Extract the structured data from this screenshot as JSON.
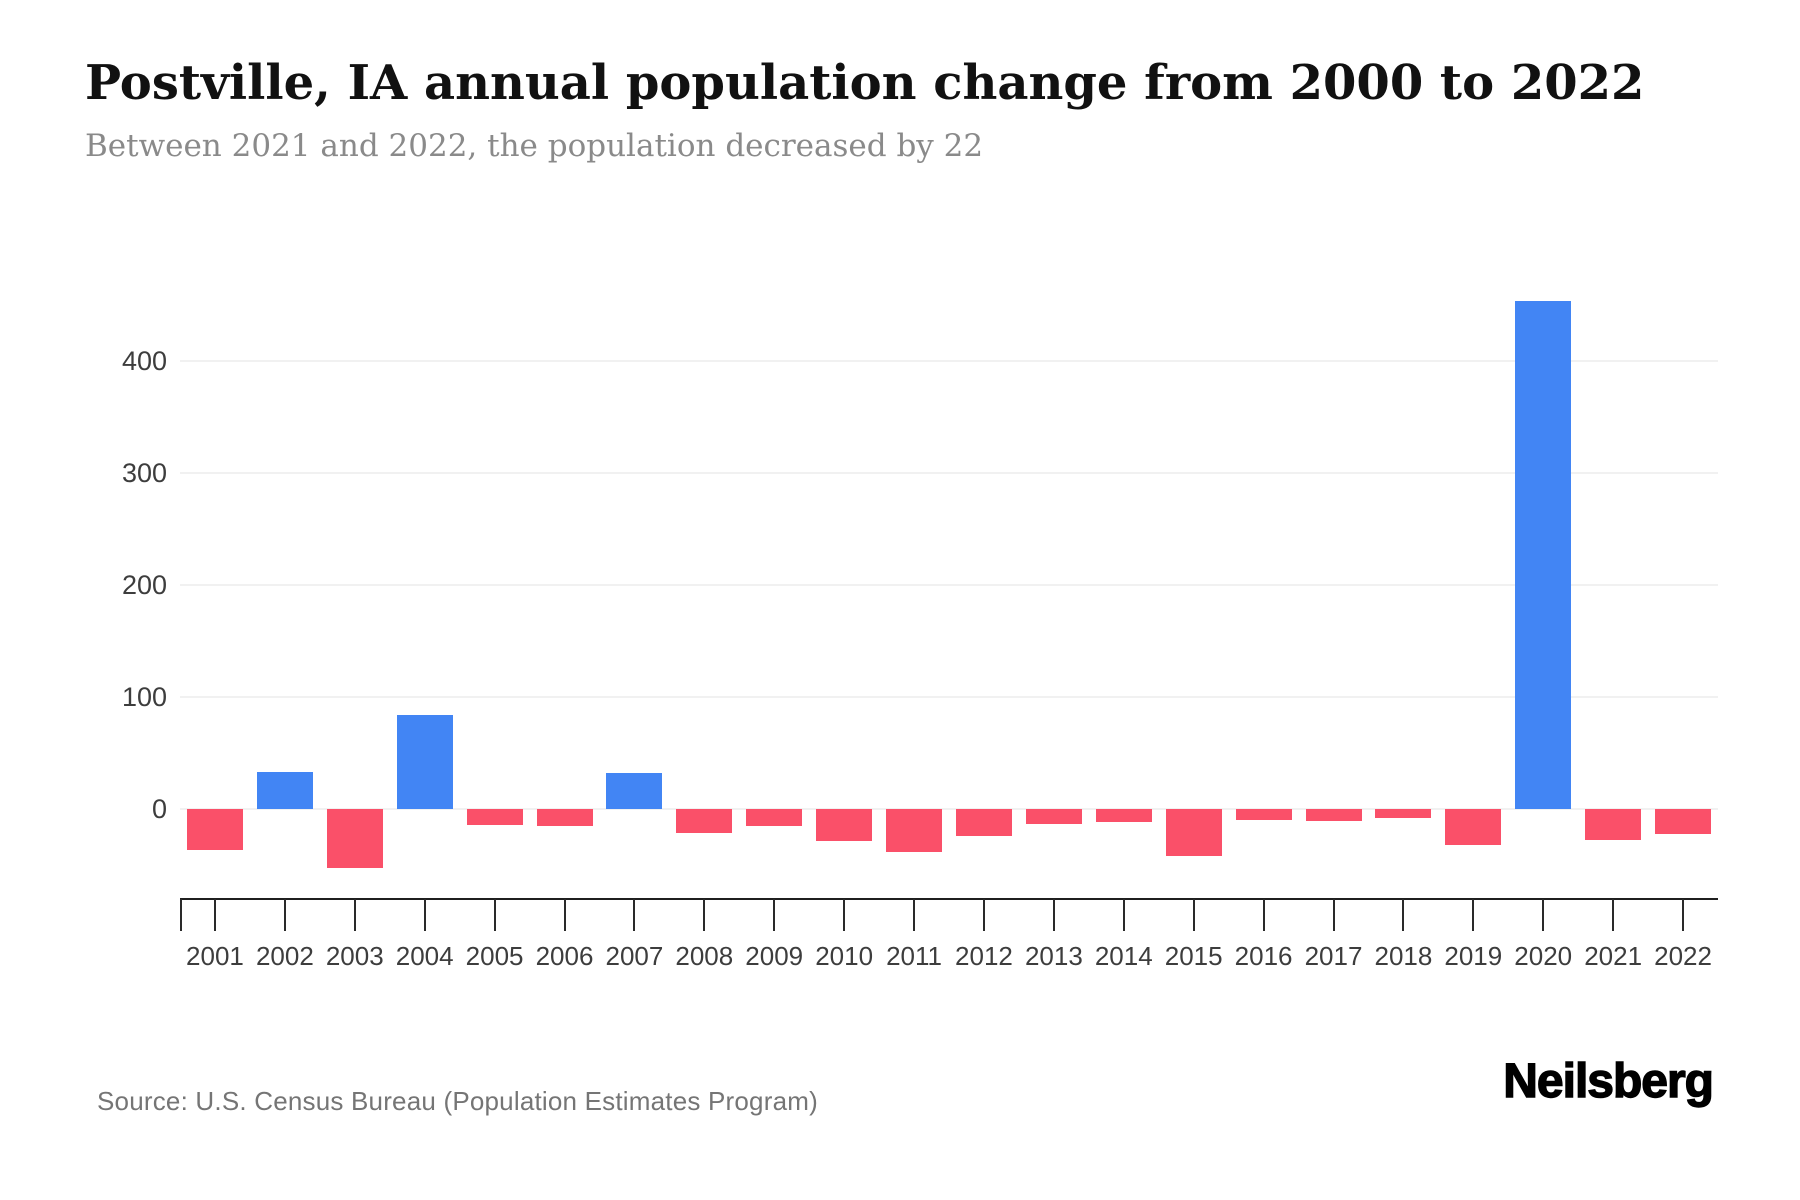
{
  "header": {
    "title": "Postville, IA annual population change from 2000 to 2022",
    "subtitle": "Between 2021 and 2022, the population decreased by 22"
  },
  "chart_data": {
    "type": "bar",
    "title": "Postville, IA annual population change from 2000 to 2022",
    "xlabel": "",
    "ylabel": "",
    "categories": [
      "2001",
      "2002",
      "2003",
      "2004",
      "2005",
      "2006",
      "2007",
      "2008",
      "2009",
      "2010",
      "2011",
      "2012",
      "2013",
      "2014",
      "2015",
      "2016",
      "2017",
      "2018",
      "2019",
      "2020",
      "2021",
      "2022"
    ],
    "values": [
      -37,
      33,
      -53,
      84,
      -14,
      -15,
      32,
      -21,
      -15,
      -29,
      -38,
      -24,
      -13,
      -12,
      -42,
      -10,
      -11,
      -8,
      -32,
      454,
      -28,
      -22
    ],
    "yticks": [
      0,
      100,
      200,
      300,
      400
    ],
    "ylim": [
      -80,
      495
    ],
    "grid": "horizontal",
    "legend_position": "none",
    "colors": {
      "positive": "#4285F4",
      "negative": "#FA5069"
    }
  },
  "footer": {
    "source": "Source: U.S. Census Bureau (Population Estimates Program)",
    "brand": "Neilsberg"
  },
  "theme": {
    "background": "#FFFFFF",
    "title_color": "#111111",
    "subtitle_color": "#8A8A8A",
    "axis_label_color": "#3D3D3D",
    "axis_line_color": "#1F1F1F",
    "gridline_color": "#F1F1F1",
    "source_color": "#757575",
    "brand_color": "#000000"
  }
}
